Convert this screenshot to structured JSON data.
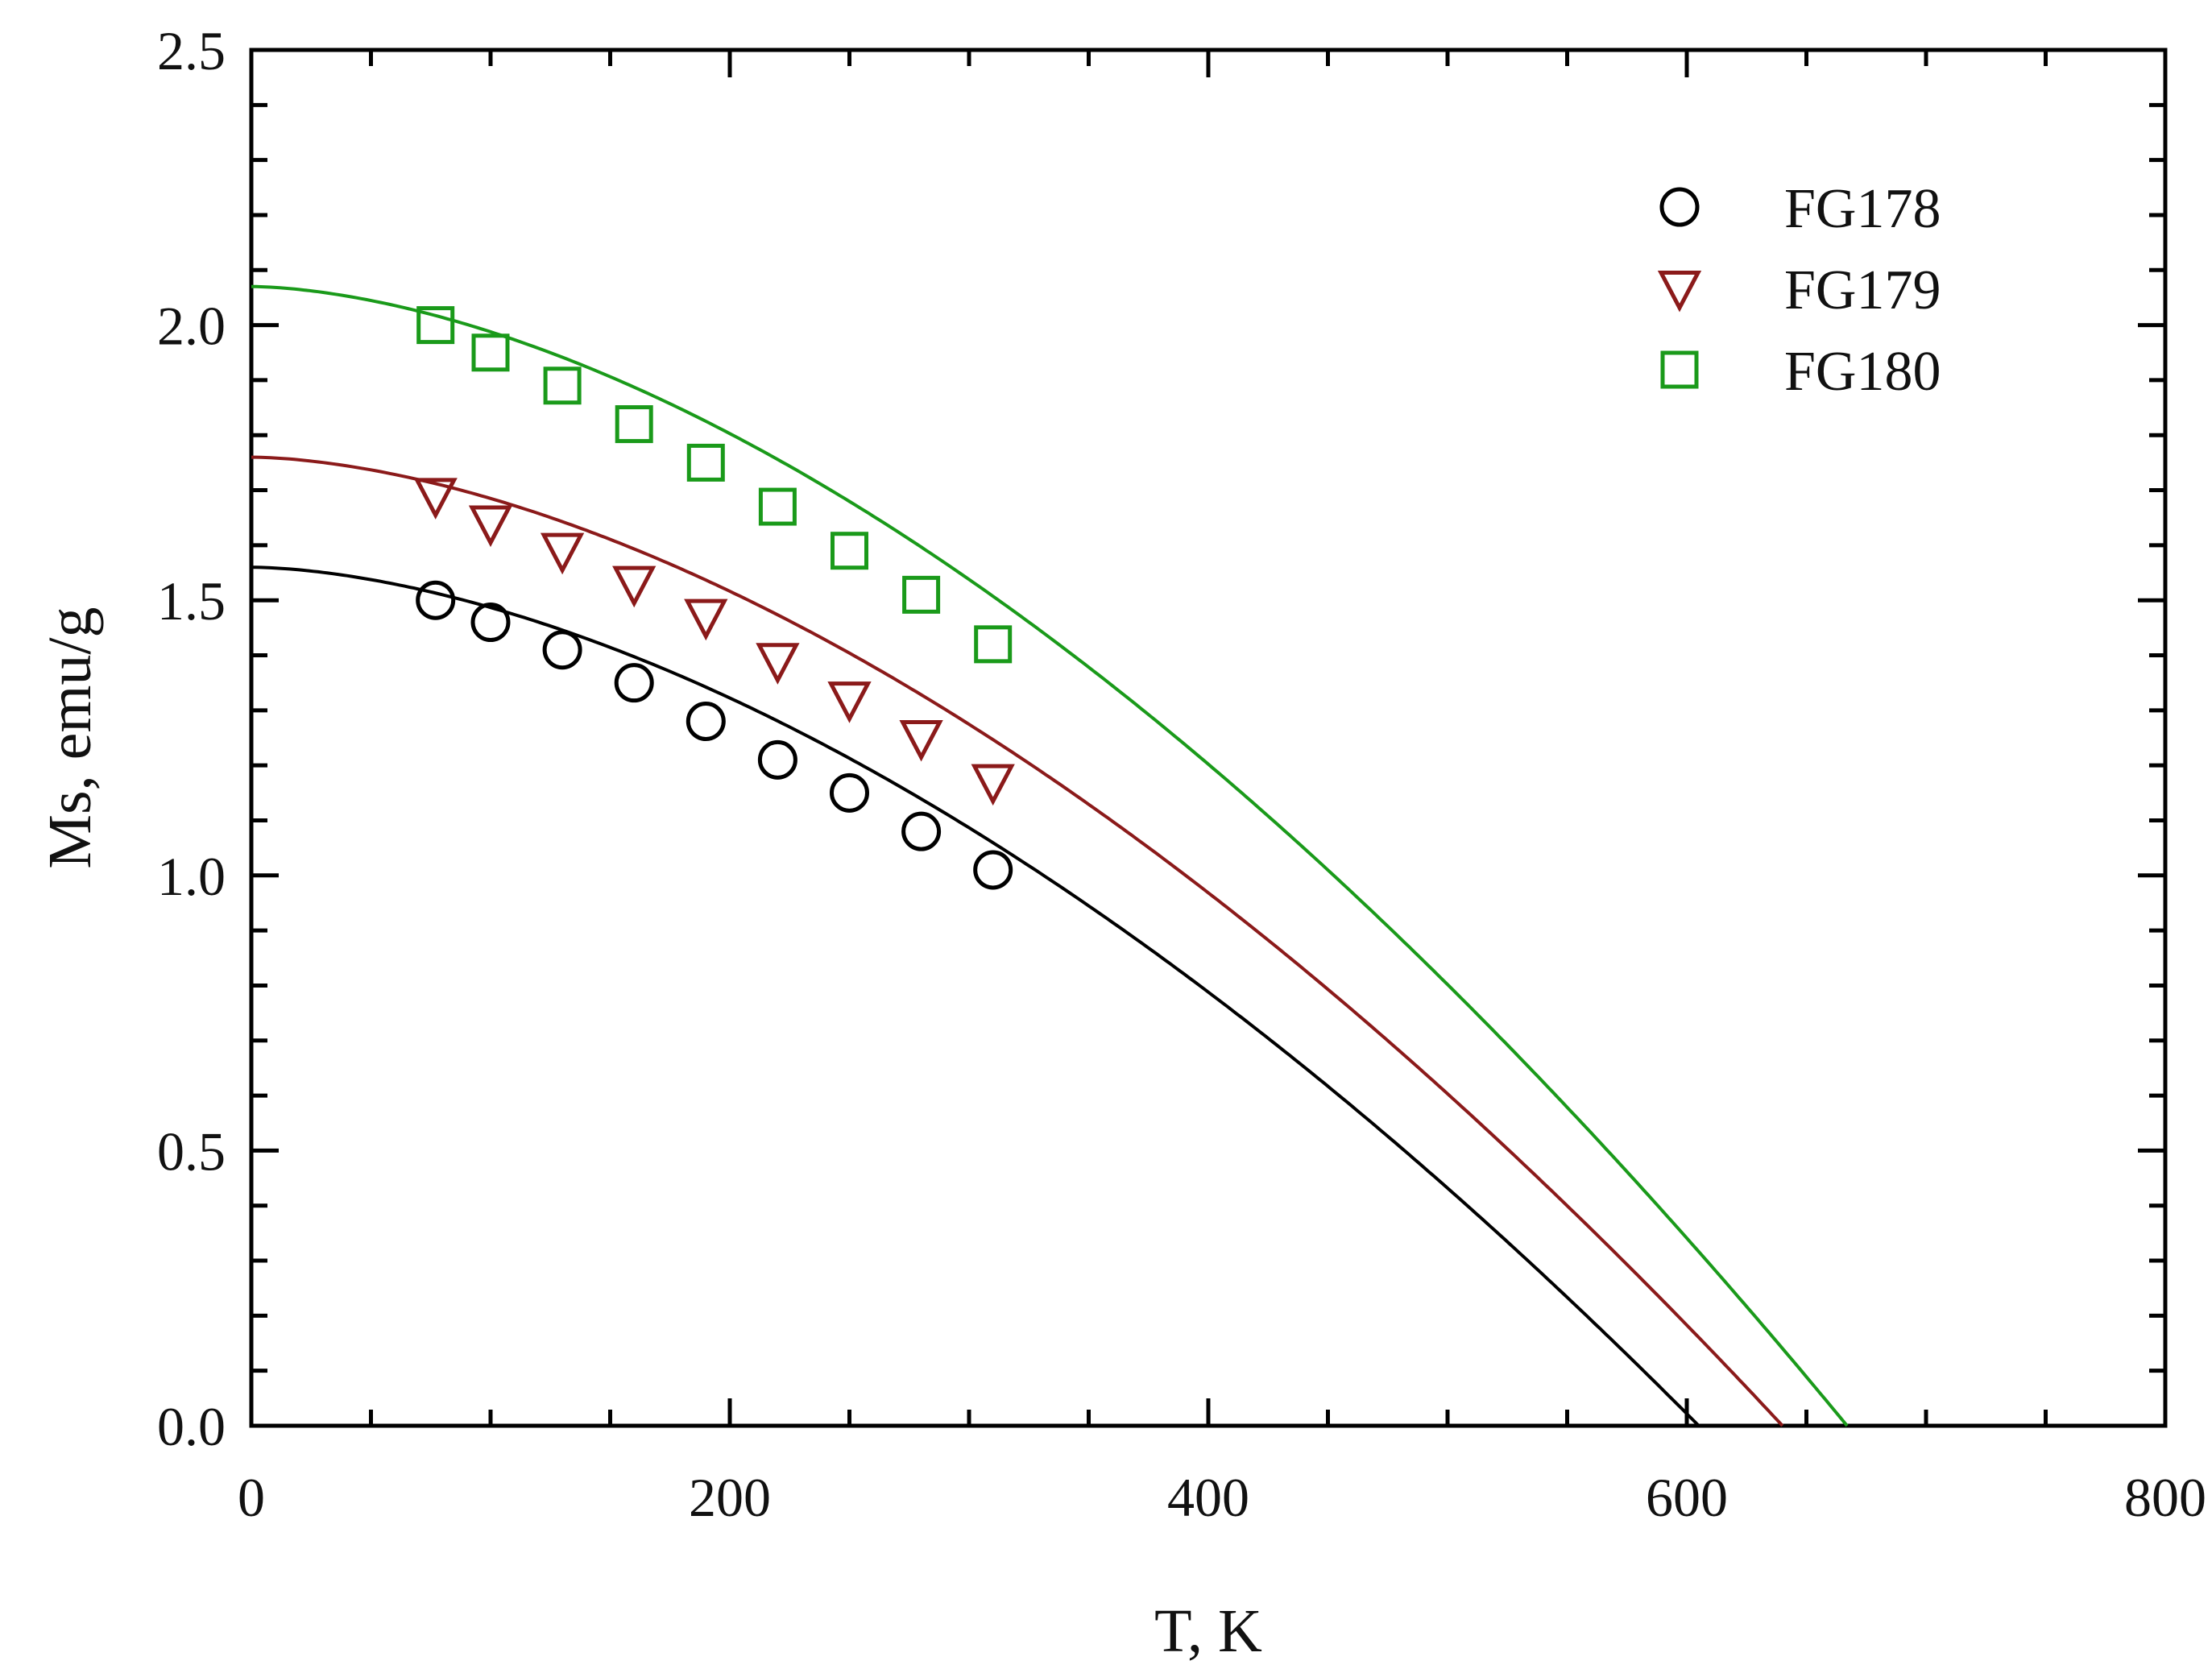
{
  "chart_data": {
    "type": "scatter",
    "title": "",
    "xlabel": "T, K",
    "ylabel": "Ms, emu/g",
    "xlim": [
      0,
      800
    ],
    "ylim": [
      0,
      2.5
    ],
    "x_ticks": [
      "0",
      "200",
      "400",
      "600",
      "800"
    ],
    "y_ticks": [
      "0.0",
      "0.5",
      "1.0",
      "1.5",
      "2.0",
      "2.5"
    ],
    "grid": false,
    "legend_position": "top-right",
    "series": [
      {
        "name": "FG178",
        "marker": "circle",
        "color": "#000000",
        "x": [
          77,
          100,
          130,
          160,
          190,
          220,
          250,
          280,
          310
        ],
        "y": [
          1.5,
          1.46,
          1.41,
          1.35,
          1.28,
          1.21,
          1.15,
          1.08,
          1.01
        ],
        "fit": {
          "M0": 1.56,
          "Tc": 605,
          "p": 1.7,
          "color": "#000000"
        }
      },
      {
        "name": "FG179",
        "marker": "triangle-down",
        "color": "#8b1a1a",
        "x": [
          77,
          100,
          130,
          160,
          190,
          220,
          250,
          280,
          310
        ],
        "y": [
          1.69,
          1.64,
          1.59,
          1.53,
          1.47,
          1.39,
          1.32,
          1.25,
          1.17
        ],
        "fit": {
          "M0": 1.76,
          "Tc": 640,
          "p": 1.7,
          "color": "#8b1a1a"
        }
      },
      {
        "name": "FG180",
        "marker": "square",
        "color": "#1a9a1a",
        "x": [
          77,
          100,
          130,
          160,
          190,
          220,
          250,
          280,
          310
        ],
        "y": [
          2.0,
          1.95,
          1.89,
          1.82,
          1.75,
          1.67,
          1.59,
          1.51,
          1.42
        ],
        "fit": {
          "M0": 2.07,
          "Tc": 667,
          "p": 1.7,
          "color": "#1a9a1a"
        }
      }
    ]
  }
}
